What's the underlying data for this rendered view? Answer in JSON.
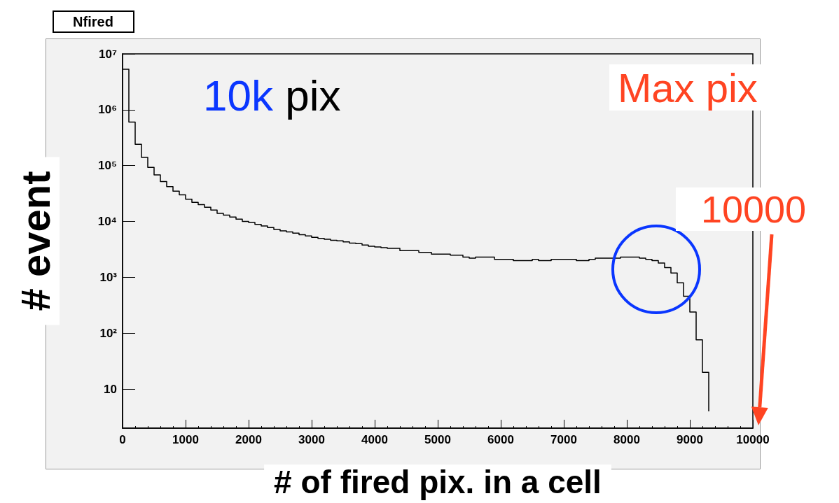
{
  "chart_data": {
    "type": "step",
    "title": "10k pix",
    "xlabel": "# of fired pix. in a cell",
    "ylabel": "# event",
    "log": "y",
    "color": "#000000",
    "x": [
      0,
      100,
      200,
      300,
      400,
      500,
      600,
      700,
      800,
      900,
      1000,
      1100,
      1200,
      1300,
      1400,
      1500,
      1600,
      1700,
      1800,
      1900,
      2000,
      2100,
      2200,
      2300,
      2400,
      2500,
      2600,
      2700,
      2800,
      2900,
      3000,
      3100,
      3200,
      3300,
      3400,
      3500,
      3600,
      3700,
      3800,
      3900,
      4000,
      4100,
      4200,
      4300,
      4400,
      4500,
      4600,
      4700,
      4800,
      4900,
      5000,
      5100,
      5200,
      5300,
      5400,
      5500,
      5600,
      5700,
      5800,
      5900,
      6000,
      6100,
      6200,
      6300,
      6400,
      6500,
      6600,
      6700,
      6800,
      6900,
      7000,
      7100,
      7200,
      7300,
      7400,
      7500,
      7600,
      7700,
      7800,
      7900,
      8000,
      8100,
      8200,
      8300,
      8400,
      8500,
      8600,
      8700,
      8800,
      8900,
      9000,
      9100,
      9200,
      9300
    ],
    "values": [
      5300000,
      600000,
      240000,
      140000,
      93000,
      68000,
      52000,
      42000,
      35000,
      30000,
      25000,
      22000,
      20000,
      18000,
      16000,
      14000,
      13000,
      12000,
      11000,
      10000,
      9600,
      8900,
      8300,
      7800,
      7200,
      6800,
      6500,
      6200,
      5800,
      5500,
      5200,
      5000,
      4800,
      4600,
      4500,
      4300,
      4100,
      4000,
      3800,
      3600,
      3500,
      3400,
      3300,
      3300,
      3000,
      3000,
      3000,
      2800,
      2800,
      2600,
      2600,
      2600,
      2500,
      2500,
      2300,
      2200,
      2300,
      2300,
      2300,
      2100,
      2100,
      2100,
      2000,
      2000,
      2000,
      2100,
      2000,
      2000,
      2100,
      2100,
      2100,
      2100,
      2000,
      2000,
      2100,
      2200,
      2200,
      2200,
      2200,
      2300,
      2300,
      2300,
      2200,
      2100,
      2000,
      1800,
      1500,
      1200,
      800,
      460,
      240,
      76,
      20,
      4
    ],
    "xlim": [
      0,
      10000
    ],
    "xticks": [
      0,
      1000,
      2000,
      3000,
      4000,
      5000,
      6000,
      7000,
      8000,
      9000,
      10000
    ],
    "ylim": [
      2,
      10000000
    ],
    "yticks": [
      {
        "value": 10,
        "label": "10"
      },
      {
        "value": 100,
        "label": "10²"
      },
      {
        "value": 1000,
        "label": "10³"
      },
      {
        "value": 10000,
        "label": "10⁴"
      },
      {
        "value": 100000,
        "label": "10⁵"
      },
      {
        "value": 1000000,
        "label": "10⁶"
      },
      {
        "value": 10000000,
        "label": "10⁷"
      }
    ],
    "annotations": [
      "Nfired",
      "Max pix",
      "10000"
    ]
  }
}
